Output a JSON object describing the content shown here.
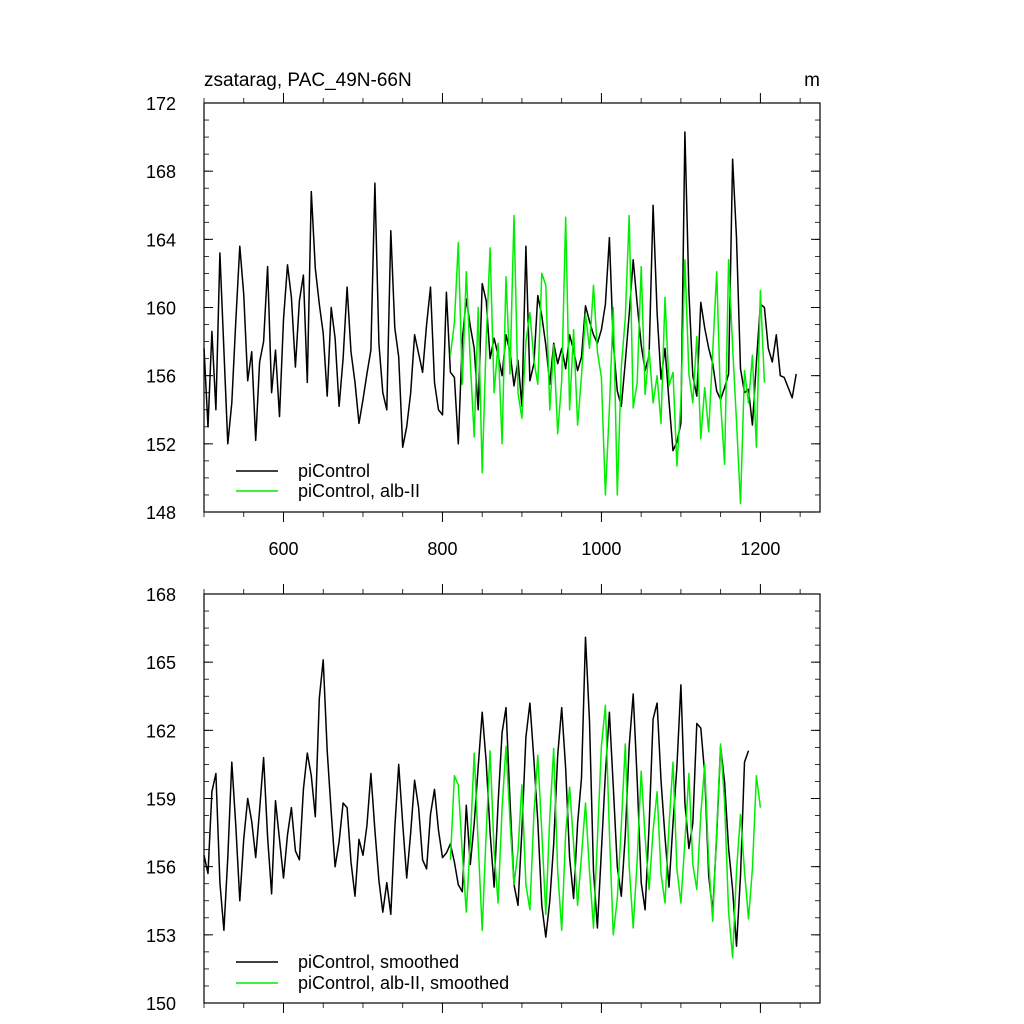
{
  "chart_data": [
    {
      "type": "line",
      "title": "zsatarag, PAC_49N-66N",
      "units": "m",
      "xlim": [
        500,
        1275
      ],
      "ylim": [
        148,
        172
      ],
      "xticks": [
        600,
        800,
        1000,
        1200
      ],
      "yticks": [
        148,
        152,
        156,
        160,
        164,
        168,
        172
      ],
      "xtick_labels_visible": true,
      "legend_position": "bottom-left",
      "series": [
        {
          "name": "piControl",
          "color": "#000000",
          "x_start": 500,
          "x_step": 5,
          "values": [
            157.6,
            153.0,
            158.6,
            154.0,
            163.2,
            157.5,
            152.0,
            154.4,
            159.2,
            163.6,
            160.8,
            155.7,
            157.4,
            152.2,
            156.8,
            158.0,
            162.4,
            155.0,
            157.5,
            153.6,
            159.3,
            162.5,
            160.6,
            156.5,
            160.4,
            161.9,
            155.6,
            166.8,
            162.3,
            160.2,
            158.5,
            154.8,
            160.0,
            158.2,
            154.2,
            157.0,
            161.2,
            157.4,
            155.6,
            153.2,
            154.6,
            156.1,
            157.5,
            167.3,
            157.9,
            155.0,
            154.0,
            164.5,
            158.8,
            157.1,
            151.8,
            153.0,
            155.0,
            158.4,
            157.3,
            156.2,
            159.0,
            161.2,
            155.6,
            154.0,
            153.7,
            160.9,
            156.2,
            155.9,
            152.0,
            158.1,
            160.5,
            158.9,
            157.6,
            154.0,
            161.4,
            160.4,
            157.0,
            158.2,
            157.2,
            156.0,
            158.4,
            157.4,
            155.4,
            156.9,
            154.2,
            163.6,
            155.7,
            156.7,
            160.7,
            159.5,
            157.8,
            155.5,
            157.9,
            156.7,
            157.6,
            156.4,
            158.4,
            157.5,
            156.3,
            157.1,
            160.1,
            159.2,
            158.4,
            157.9,
            158.7,
            160.2,
            164.1,
            157.9,
            155.1,
            154.2,
            156.8,
            159.6,
            162.8,
            160.2,
            157.8,
            156.3,
            157.2,
            166.0,
            159.7,
            155.8,
            157.6,
            154.5,
            151.6,
            152.1,
            153.2,
            170.3,
            160.9,
            156.0,
            154.8,
            160.3,
            158.8,
            157.6,
            156.7,
            155.1,
            154.6,
            155.3,
            156.1,
            168.7,
            164.1,
            156.4,
            155.0,
            155.2,
            153.1,
            156.8,
            160.2,
            160.0,
            157.6,
            156.8,
            158.4,
            156.0,
            155.9,
            155.3,
            154.7,
            156.1
          ]
        },
        {
          "name": "piControl, alb-II",
          "color": "#00ee00",
          "x_start": 810,
          "x_step": 5,
          "values": [
            157.2,
            159.1,
            163.8,
            155.5,
            162.1,
            156.8,
            152.4,
            160.0,
            150.3,
            158.1,
            163.5,
            155.0,
            157.9,
            152.0,
            161.8,
            156.1,
            165.4,
            155.0,
            153.5,
            158.0,
            159.7,
            156.9,
            155.5,
            162.0,
            161.3,
            154.0,
            157.8,
            152.6,
            155.7,
            165.3,
            154.0,
            158.7,
            153.1,
            156.0,
            159.6,
            157.6,
            161.3,
            157.4,
            155.9,
            149.0,
            154.1,
            160.0,
            149.0,
            156.5,
            159.4,
            165.4,
            154.1,
            155.6,
            162.4,
            154.9,
            157.5,
            154.4,
            156.0,
            153.2,
            160.6,
            155.4,
            156.2,
            150.7,
            154.5,
            162.8,
            156.1,
            154.4,
            158.3,
            152.3,
            155.3,
            152.7,
            157.4,
            162.1,
            154.4,
            150.8,
            162.8,
            157.7,
            153.3,
            148.5,
            156.3,
            154.4,
            157.2,
            151.8,
            161.0,
            155.6
          ]
        }
      ]
    },
    {
      "type": "line",
      "title": "",
      "xlim": [
        500,
        1275
      ],
      "ylim": [
        150,
        168
      ],
      "xticks": [
        600,
        800,
        1000,
        1200
      ],
      "yticks": [
        150,
        153,
        156,
        159,
        162,
        165,
        168
      ],
      "xtick_labels_visible": false,
      "legend_position": "bottom-left",
      "series": [
        {
          "name": "piControl, smoothed",
          "color": "#000000",
          "x_start": 500,
          "x_step": 5,
          "values": [
            156.5,
            155.7,
            159.3,
            160.1,
            155.3,
            153.2,
            156.4,
            160.6,
            157.8,
            154.5,
            157.2,
            159.0,
            158.0,
            156.4,
            158.5,
            160.8,
            157.3,
            154.8,
            158.9,
            157.2,
            155.5,
            157.4,
            158.6,
            156.7,
            156.3,
            159.4,
            161.0,
            160.0,
            158.2,
            163.4,
            165.1,
            161.1,
            158.4,
            156.0,
            157.1,
            158.8,
            158.6,
            156.2,
            154.7,
            157.2,
            156.5,
            157.8,
            160.1,
            157.6,
            155.4,
            154.0,
            155.3,
            153.9,
            157.7,
            160.5,
            157.9,
            155.5,
            157.5,
            159.8,
            158.6,
            156.3,
            155.9,
            158.3,
            159.4,
            157.6,
            156.4,
            156.6,
            157.0,
            156.2,
            155.2,
            154.9,
            158.7,
            156.1,
            157.9,
            160.4,
            162.8,
            160.6,
            157.5,
            155.1,
            158.8,
            161.9,
            163.0,
            158.9,
            155.2,
            154.3,
            157.6,
            161.7,
            163.2,
            160.7,
            158.0,
            154.3,
            152.9,
            154.5,
            157.0,
            160.9,
            163.0,
            160.3,
            156.4,
            154.6,
            157.9,
            159.9,
            166.1,
            162.4,
            155.8,
            153.3,
            156.7,
            160.1,
            162.8,
            159.5,
            156.0,
            154.7,
            157.4,
            161.3,
            163.6,
            159.8,
            155.3,
            154.1,
            157.8,
            162.5,
            163.2,
            159.8,
            157.3,
            155.1,
            157.9,
            160.4,
            164.0,
            158.8,
            156.8,
            157.9,
            162.3,
            162.1,
            160.1,
            155.6,
            154.0,
            157.4,
            161.3,
            159.7,
            156.8,
            155.0,
            152.5,
            155.6,
            160.6,
            161.1
          ]
        },
        {
          "name": "piControl, alb-II, smoothed",
          "color": "#00ee00",
          "x_start": 810,
          "x_step": 5,
          "values": [
            156.3,
            160.0,
            159.6,
            156.6,
            154.0,
            157.1,
            161.0,
            157.0,
            153.2,
            157.5,
            161.1,
            156.7,
            154.4,
            158.6,
            161.3,
            158.0,
            155.2,
            156.7,
            159.6,
            155.2,
            154.1,
            158.3,
            160.9,
            157.5,
            153.9,
            158.2,
            161.2,
            155.8,
            153.2,
            157.5,
            159.5,
            157.0,
            154.3,
            156.5,
            158.8,
            155.8,
            153.3,
            157.2,
            161.3,
            163.1,
            157.5,
            153.0,
            154.6,
            157.8,
            161.4,
            156.0,
            153.3,
            156.3,
            160.2,
            157.3,
            155.0,
            157.6,
            159.3,
            155.7,
            154.4,
            157.8,
            160.6,
            155.9,
            154.4,
            157.1,
            160.1,
            156.1,
            155.0,
            158.3,
            160.5,
            156.2,
            153.6,
            157.6,
            161.4,
            158.8,
            154.0,
            152.0,
            155.8,
            158.3,
            155.8,
            153.7,
            155.9,
            160.0,
            158.6
          ]
        }
      ]
    }
  ]
}
